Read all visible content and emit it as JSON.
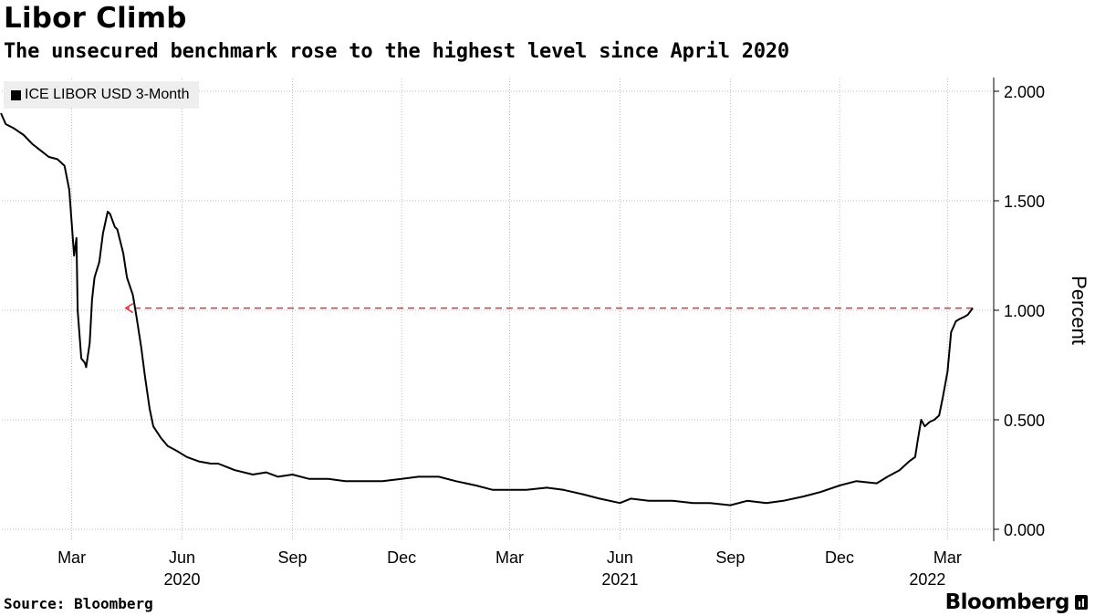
{
  "header": {
    "title": "Libor Climb",
    "subtitle": "The unsecured benchmark rose to the highest level since April 2020"
  },
  "legend": {
    "label": "ICE LIBOR USD 3-Month"
  },
  "footer": {
    "source": "Source: Bloomberg",
    "brand": "Bloomberg"
  },
  "colors": {
    "series": "#000000",
    "annotation": "#e0303a",
    "grid": "#bdbdbd",
    "legend_bg": "#eeeeee"
  },
  "chart_data": {
    "type": "line",
    "title": "Libor Climb",
    "subtitle": "The unsecured benchmark rose to the highest level since April 2020",
    "ylabel": "Percent",
    "ylim": [
      0,
      2
    ],
    "y_ticks": [
      0,
      0.5,
      1,
      1.5,
      2
    ],
    "y_tick_labels": [
      "0.000",
      "0.500",
      "1.000",
      "1.500",
      "2.000"
    ],
    "y_axis_side": "right",
    "xlim": [
      "2020-01-02",
      "2022-03-22"
    ],
    "x_ticks": [
      {
        "date": "2020-03-01",
        "label": "Mar",
        "year": "2020"
      },
      {
        "date": "2020-06-01",
        "label": "Jun",
        "year": ""
      },
      {
        "date": "2020-09-01",
        "label": "Sep",
        "year": ""
      },
      {
        "date": "2020-12-01",
        "label": "Dec",
        "year": ""
      },
      {
        "date": "2021-03-01",
        "label": "Mar",
        "year": "2021"
      },
      {
        "date": "2021-06-01",
        "label": "Jun",
        "year": ""
      },
      {
        "date": "2021-09-01",
        "label": "Sep",
        "year": ""
      },
      {
        "date": "2021-12-01",
        "label": "Dec",
        "year": ""
      },
      {
        "date": "2022-03-01",
        "label": "Mar",
        "year": "2022"
      }
    ],
    "grid": true,
    "legend_position": "top-left",
    "series": [
      {
        "name": "ICE LIBOR USD 3-Month",
        "color": "#000000",
        "points": [
          [
            "2020-01-02",
            1.9
          ],
          [
            "2020-01-06",
            1.85
          ],
          [
            "2020-01-13",
            1.83
          ],
          [
            "2020-01-21",
            1.8
          ],
          [
            "2020-01-28",
            1.76
          ],
          [
            "2020-02-04",
            1.73
          ],
          [
            "2020-02-11",
            1.7
          ],
          [
            "2020-02-18",
            1.69
          ],
          [
            "2020-02-24",
            1.66
          ],
          [
            "2020-02-28",
            1.55
          ],
          [
            "2020-03-03",
            1.25
          ],
          [
            "2020-03-05",
            1.33
          ],
          [
            "2020-03-06",
            1.0
          ],
          [
            "2020-03-09",
            0.78
          ],
          [
            "2020-03-12",
            0.76
          ],
          [
            "2020-03-13",
            0.74
          ],
          [
            "2020-03-16",
            0.85
          ],
          [
            "2020-03-18",
            1.05
          ],
          [
            "2020-03-20",
            1.15
          ],
          [
            "2020-03-24",
            1.22
          ],
          [
            "2020-03-27",
            1.35
          ],
          [
            "2020-03-31",
            1.45
          ],
          [
            "2020-04-02",
            1.44
          ],
          [
            "2020-04-06",
            1.38
          ],
          [
            "2020-04-08",
            1.37
          ],
          [
            "2020-04-13",
            1.26
          ],
          [
            "2020-04-16",
            1.15
          ],
          [
            "2020-04-21",
            1.07
          ],
          [
            "2020-04-24",
            0.97
          ],
          [
            "2020-04-28",
            0.83
          ],
          [
            "2020-05-01",
            0.7
          ],
          [
            "2020-05-05",
            0.55
          ],
          [
            "2020-05-08",
            0.47
          ],
          [
            "2020-05-14",
            0.42
          ],
          [
            "2020-05-20",
            0.38
          ],
          [
            "2020-05-27",
            0.36
          ],
          [
            "2020-06-05",
            0.33
          ],
          [
            "2020-06-15",
            0.31
          ],
          [
            "2020-06-25",
            0.3
          ],
          [
            "2020-07-01",
            0.3
          ],
          [
            "2020-07-15",
            0.27
          ],
          [
            "2020-07-30",
            0.25
          ],
          [
            "2020-08-10",
            0.26
          ],
          [
            "2020-08-20",
            0.24
          ],
          [
            "2020-09-01",
            0.25
          ],
          [
            "2020-09-15",
            0.23
          ],
          [
            "2020-10-01",
            0.23
          ],
          [
            "2020-10-15",
            0.22
          ],
          [
            "2020-11-01",
            0.22
          ],
          [
            "2020-11-15",
            0.22
          ],
          [
            "2020-12-01",
            0.23
          ],
          [
            "2020-12-15",
            0.24
          ],
          [
            "2021-01-01",
            0.24
          ],
          [
            "2021-01-15",
            0.22
          ],
          [
            "2021-02-01",
            0.2
          ],
          [
            "2021-02-15",
            0.18
          ],
          [
            "2021-03-01",
            0.18
          ],
          [
            "2021-03-15",
            0.18
          ],
          [
            "2021-04-01",
            0.19
          ],
          [
            "2021-04-15",
            0.18
          ],
          [
            "2021-05-01",
            0.16
          ],
          [
            "2021-05-15",
            0.14
          ],
          [
            "2021-06-01",
            0.12
          ],
          [
            "2021-06-10",
            0.14
          ],
          [
            "2021-06-25",
            0.13
          ],
          [
            "2021-07-15",
            0.13
          ],
          [
            "2021-08-01",
            0.12
          ],
          [
            "2021-08-15",
            0.12
          ],
          [
            "2021-09-01",
            0.11
          ],
          [
            "2021-09-15",
            0.13
          ],
          [
            "2021-10-01",
            0.12
          ],
          [
            "2021-10-15",
            0.13
          ],
          [
            "2021-11-01",
            0.15
          ],
          [
            "2021-11-15",
            0.17
          ],
          [
            "2021-12-01",
            0.2
          ],
          [
            "2021-12-15",
            0.22
          ],
          [
            "2022-01-01",
            0.21
          ],
          [
            "2022-01-10",
            0.24
          ],
          [
            "2022-01-20",
            0.27
          ],
          [
            "2022-01-28",
            0.31
          ],
          [
            "2022-02-02",
            0.33
          ],
          [
            "2022-02-04",
            0.4
          ],
          [
            "2022-02-07",
            0.5
          ],
          [
            "2022-02-10",
            0.47
          ],
          [
            "2022-02-14",
            0.49
          ],
          [
            "2022-02-18",
            0.5
          ],
          [
            "2022-02-22",
            0.52
          ],
          [
            "2022-02-25",
            0.6
          ],
          [
            "2022-03-01",
            0.72
          ],
          [
            "2022-03-04",
            0.9
          ],
          [
            "2022-03-08",
            0.95
          ],
          [
            "2022-03-11",
            0.96
          ],
          [
            "2022-03-15",
            0.97
          ],
          [
            "2022-03-18",
            0.98
          ],
          [
            "2022-03-22",
            1.01
          ]
        ]
      }
    ],
    "annotations": [
      {
        "type": "arrow",
        "style": "dashed",
        "color": "#e0303a",
        "y": 1.01,
        "from_x": "2022-03-22",
        "to_x": "2020-04-15"
      }
    ]
  }
}
